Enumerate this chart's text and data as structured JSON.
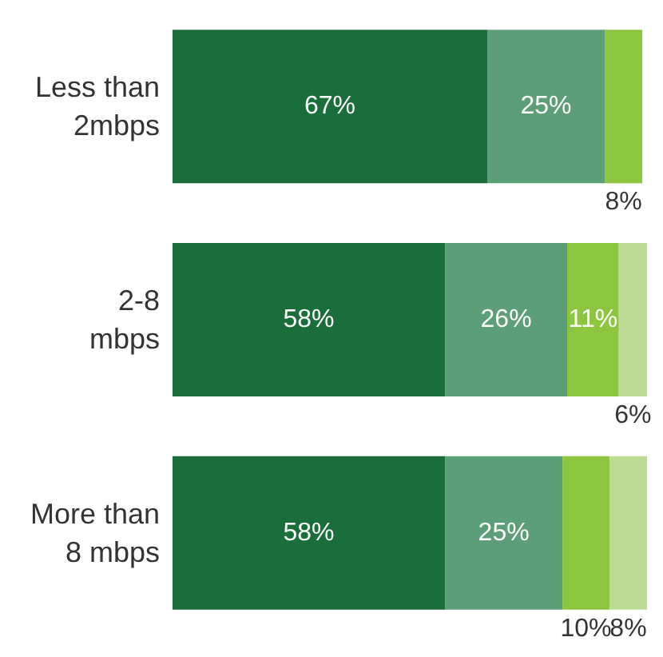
{
  "chart_data": {
    "type": "bar",
    "orientation": "horizontal",
    "stacked": true,
    "categories": [
      "Less than\n2mbps",
      "2-8\nmbps",
      "More than\n8 mbps"
    ],
    "series": [
      {
        "color": "#1a6e3a",
        "values": [
          67,
          58,
          58
        ],
        "value_labels": [
          "67%",
          "58%",
          "58%"
        ]
      },
      {
        "color": "#5c9e78",
        "values": [
          25,
          26,
          25
        ],
        "value_labels": [
          "25%",
          "26%",
          "25%"
        ]
      },
      {
        "color": "#8cc63f",
        "values": [
          8,
          11,
          10
        ],
        "value_labels": [
          "8%",
          "11%",
          "10%"
        ]
      },
      {
        "color": "#bcdc96",
        "values": [
          null,
          6,
          8
        ],
        "value_labels": [
          null,
          "6%",
          "8%"
        ]
      }
    ]
  }
}
